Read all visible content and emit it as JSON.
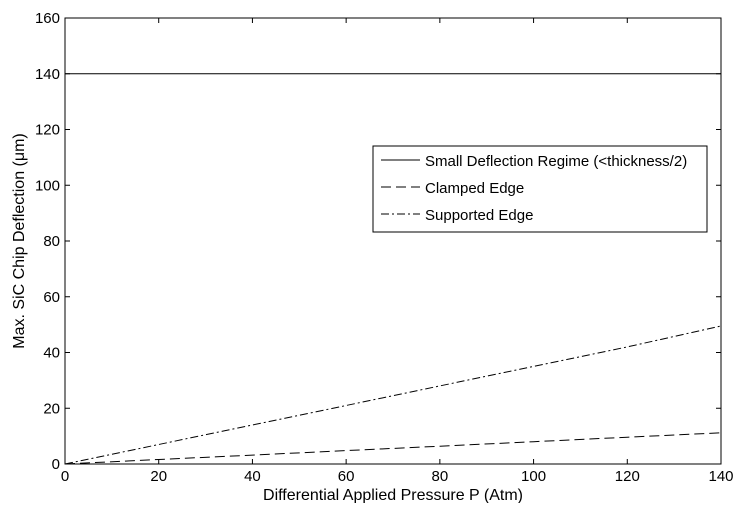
{
  "chart_data": {
    "type": "line",
    "title": "",
    "xlabel": "Differential Applied Pressure P (Atm)",
    "ylabel": "Max. SiC Chip Deflection (μm)",
    "xlim": [
      0,
      140
    ],
    "ylim": [
      0,
      160
    ],
    "xticks": [
      0,
      20,
      40,
      60,
      80,
      100,
      120,
      140
    ],
    "yticks": [
      0,
      20,
      40,
      60,
      80,
      100,
      120,
      140,
      160
    ],
    "grid": false,
    "legend_position": "right, upper-middle",
    "series": [
      {
        "name": "Small Deflection Regime (<thickness/2)",
        "line_style": "solid",
        "color": "#000000",
        "x": [
          0,
          140
        ],
        "y": [
          140,
          140
        ]
      },
      {
        "name": "Clamped Edge",
        "line_style": "dashed",
        "color": "#000000",
        "x": [
          0,
          20,
          40,
          60,
          80,
          100,
          120,
          140
        ],
        "y": [
          0,
          1.6,
          3.2,
          4.8,
          6.4,
          8.0,
          9.6,
          11.2
        ]
      },
      {
        "name": "Supported Edge",
        "line_style": "dashdot",
        "color": "#000000",
        "x": [
          0,
          20,
          40,
          60,
          80,
          100,
          120,
          140
        ],
        "y": [
          0,
          7.0,
          14.0,
          21.0,
          28.0,
          35.0,
          42.0,
          49.5
        ]
      }
    ]
  }
}
